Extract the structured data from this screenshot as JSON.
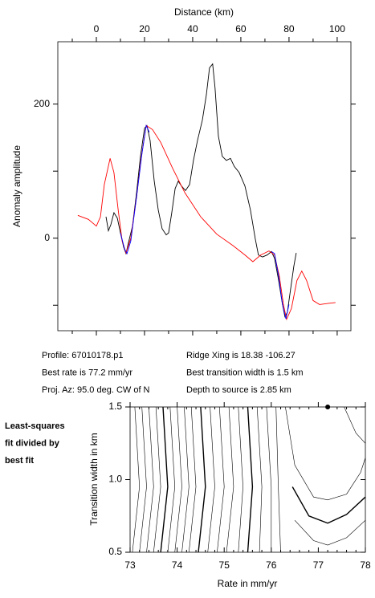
{
  "chart_data": [
    {
      "type": "line",
      "xlabel": "Distance (km)",
      "ylabel": "Anomaly amplitude",
      "xaxis_position": "top",
      "xlim": [
        -16,
        105.7
      ],
      "ylim": [
        -138,
        293
      ],
      "xticks": [
        0,
        20,
        40,
        60,
        80,
        100
      ],
      "xminor": [
        -10,
        10,
        30,
        50,
        70,
        90
      ],
      "yticks": [
        0,
        200
      ],
      "yminor": [
        -100,
        100
      ],
      "series": [
        {
          "color": "#000000",
          "x": [
            4,
            5,
            6,
            7.3,
            8.7,
            10,
            11.3,
            12.3,
            13.3,
            15,
            16.7,
            18.3,
            20,
            21,
            22.3,
            24,
            25.7,
            27.3,
            29,
            30,
            31.3,
            32.7,
            34,
            35.3,
            37,
            38.7,
            40.3,
            42,
            44,
            45.7,
            47,
            48.3,
            49.3,
            50.7,
            52.3,
            54,
            55.7,
            57.3,
            59.3,
            61.7,
            64,
            66,
            67.3,
            69,
            71,
            72.7,
            74,
            75.7,
            77.3,
            78.3,
            79.3,
            80.7,
            82,
            83
          ],
          "values": [
            32,
            11,
            20,
            38,
            30,
            8,
            -13,
            -23,
            -7,
            18,
            68,
            122,
            164,
            168,
            146,
            86,
            42,
            14,
            5,
            8,
            38,
            74,
            85,
            78,
            71,
            80,
            116,
            146,
            176,
            214,
            254,
            260,
            224,
            152,
            122,
            116,
            119,
            107,
            98,
            78,
            42,
            -1,
            -25,
            -28,
            -25,
            -20,
            -30,
            -63,
            -99,
            -117,
            -111,
            -75,
            -42,
            -22
          ]
        },
        {
          "color": "#ff0000",
          "x": [
            -7.7,
            -3.3,
            0,
            1.7,
            3.3,
            5.7,
            7.3,
            9,
            10.7,
            12.3,
            14.3,
            16.7,
            18.7,
            20.7,
            23.3,
            26.7,
            31.7,
            36.7,
            43.3,
            50,
            56.7,
            61.7,
            65,
            68.3,
            71.7,
            74,
            76,
            77.7,
            79,
            81,
            83.3,
            85.3,
            87.3,
            90,
            92.7,
            96.7,
            99.3
          ],
          "values": [
            34,
            28,
            18,
            32,
            80,
            119,
            98,
            44,
            -4,
            -22,
            0,
            62,
            122,
            168,
            162,
            143,
            104,
            68,
            32,
            6,
            -11,
            -25,
            -35,
            -25,
            -19,
            -25,
            -57,
            -99,
            -121,
            -105,
            -63,
            -49,
            -63,
            -93,
            -99,
            -97,
            -96
          ]
        },
        {
          "color": "#0000ff",
          "x": [
            10,
            11.7,
            12.7,
            14.3,
            16.7,
            19,
            20.7,
            22,
            50,
            72.7,
            74,
            75.7,
            77.3,
            78.7,
            80
          ],
          "values": [
            8,
            -16,
            -23,
            -4,
            62,
            128,
            168,
            158,
            null,
            -20,
            -23,
            -57,
            -99,
            -120,
            -99
          ]
        }
      ]
    },
    {
      "type": "contour",
      "xlabel": "Rate in mm/yr",
      "ylabel": "Transition width in km",
      "xlim": [
        73,
        78
      ],
      "ylim": [
        0.5,
        1.5
      ],
      "xticks": [
        73,
        74,
        75,
        76,
        77,
        78
      ],
      "xminor": [
        73.2,
        73.4,
        73.6,
        73.8,
        74.2,
        74.4,
        74.6,
        74.8,
        75.2,
        75.4,
        75.6,
        75.8,
        76.2,
        76.4,
        76.6,
        76.8,
        77.2,
        77.4,
        77.6,
        77.8
      ],
      "yticks": [
        0.5,
        {
          "value": 1,
          "label": "1.0"
        },
        1.5
      ],
      "marker": {
        "x": 77.2,
        "y": 1.5
      },
      "contours": [
        {
          "x": [
            73.1,
            73.2,
            73.05
          ],
          "y": [
            1.5,
            0.95,
            0.5
          ]
        },
        {
          "x": [
            73.25,
            73.35,
            73.2
          ],
          "y": [
            1.5,
            0.95,
            0.5
          ]
        },
        {
          "x": [
            73.4,
            73.5,
            73.35
          ],
          "y": [
            1.5,
            0.95,
            0.5
          ]
        },
        {
          "x": [
            73.55,
            73.65,
            73.5
          ],
          "y": [
            1.5,
            0.95,
            0.5
          ]
        },
        {
          "x": [
            73.7,
            73.8,
            73.65
          ],
          "y": [
            1.5,
            0.95,
            0.5
          ]
        },
        {
          "x": [
            73.85,
            73.95,
            73.8
          ],
          "y": [
            1.5,
            0.95,
            0.5
          ]
        },
        {
          "x": [
            74,
            74.1,
            73.95
          ],
          "y": [
            1.5,
            0.95,
            0.5
          ]
        },
        {
          "x": [
            74.15,
            74.25,
            74.1
          ],
          "y": [
            1.5,
            0.95,
            0.5
          ]
        },
        {
          "x": [
            74.3,
            74.4,
            74.25
          ],
          "y": [
            1.5,
            0.95,
            0.5
          ]
        },
        {
          "x": [
            74.5,
            74.6,
            74.45
          ],
          "y": [
            1.5,
            0.95,
            0.5
          ]
        },
        {
          "x": [
            74.7,
            74.8,
            74.65
          ],
          "y": [
            1.5,
            0.95,
            0.5
          ]
        },
        {
          "x": [
            74.9,
            75,
            74.85
          ],
          "y": [
            1.5,
            0.95,
            0.5
          ]
        },
        {
          "x": [
            75.1,
            75.2,
            75.05
          ],
          "y": [
            1.5,
            0.95,
            0.5
          ]
        },
        {
          "x": [
            75.3,
            75.4,
            75.3
          ],
          "y": [
            1.5,
            0.95,
            0.5
          ]
        },
        {
          "x": [
            75.5,
            75.6,
            75.5
          ],
          "y": [
            1.5,
            0.95,
            0.5
          ]
        },
        {
          "x": [
            75.7,
            75.8,
            75.75
          ],
          "y": [
            1.5,
            0.95,
            0.5
          ]
        },
        {
          "x": [
            75.9,
            76,
            76
          ],
          "y": [
            1.5,
            0.95,
            0.5
          ]
        },
        {
          "x": [
            76.1,
            76.15,
            76.2
          ],
          "y": [
            1.5,
            0.95,
            0.5
          ]
        },
        {
          "x": [
            76.3,
            76.5,
            76.9,
            77.2,
            77.6,
            77.9,
            78
          ],
          "y": [
            1.5,
            1.1,
            0.88,
            0.86,
            0.9,
            1.05,
            1.15
          ]
        },
        {
          "x": [
            76.45,
            76.8,
            77.2,
            77.6,
            78
          ],
          "y": [
            0.95,
            0.75,
            0.7,
            0.76,
            0.88
          ]
        },
        {
          "x": [
            76.5,
            76.9,
            77.2,
            77.6,
            78
          ],
          "y": [
            0.72,
            0.58,
            0.55,
            0.6,
            0.72
          ]
        },
        {
          "x": [
            77.55,
            77.8,
            78
          ],
          "y": [
            1.5,
            1.32,
            1.25
          ]
        }
      ]
    }
  ],
  "info": [
    [
      "Profile: 67010178.p1",
      "Ridge Xing is 18.38 -106.27"
    ],
    [
      "Best rate is 77.2 mm/yr",
      "Best transition width is 1.5 km"
    ],
    [
      "Proj. Az: 95.0 deg. CW of N",
      "Depth to source is   2.85 km"
    ]
  ],
  "side_note": [
    "Least-squares",
    "fit divided by",
    "best fit"
  ]
}
